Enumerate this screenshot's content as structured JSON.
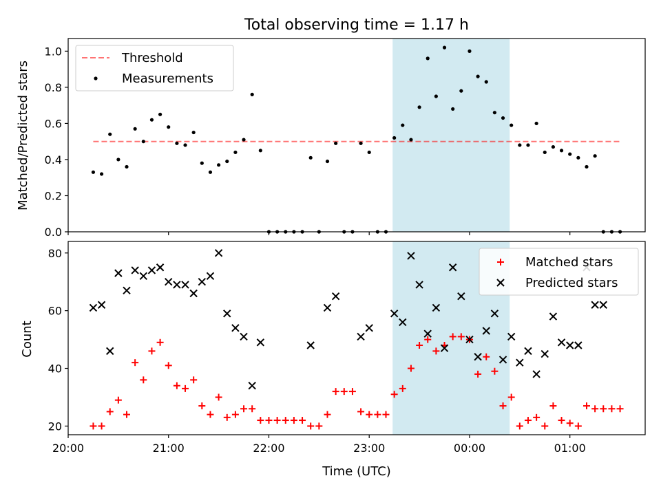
{
  "figure": {
    "title": "Total observing time = 1.17 h",
    "xlabel": "Time (UTC)"
  },
  "colors": {
    "highlight": "#add8e6",
    "threshold": "#ff0000",
    "measurement": "#000000",
    "matched": "#ff0000",
    "predicted": "#000000"
  },
  "chart_data": [
    {
      "type": "scatter",
      "ylabel": "Matched/Predicted stars",
      "xlim": [
        "20:00",
        "01:45"
      ],
      "ylim": [
        0,
        1.07
      ],
      "yticks": [
        "0.0",
        "0.2",
        "0.4",
        "0.6",
        "0.8",
        "1.0"
      ],
      "highlight_span": [
        "23:14",
        "00:24"
      ],
      "legend": {
        "position": "upper-left",
        "entries": [
          "Threshold",
          "Measurements"
        ]
      },
      "threshold": {
        "name": "Threshold",
        "value": 0.5,
        "x_range": [
          "20:15",
          "01:30"
        ],
        "style": "dashed"
      },
      "series": [
        {
          "name": "Measurements",
          "x": [
            "20:15",
            "20:20",
            "20:25",
            "20:30",
            "20:35",
            "20:40",
            "20:45",
            "20:50",
            "20:55",
            "21:00",
            "21:05",
            "21:10",
            "21:15",
            "21:20",
            "21:25",
            "21:30",
            "21:35",
            "21:40",
            "21:45",
            "21:50",
            "21:55",
            "22:00",
            "22:05",
            "22:10",
            "22:15",
            "22:20",
            "22:25",
            "22:30",
            "22:35",
            "22:40",
            "22:45",
            "22:50",
            "22:55",
            "23:00",
            "23:05",
            "23:10",
            "23:15",
            "23:20",
            "23:25",
            "23:30",
            "23:35",
            "23:40",
            "23:45",
            "23:50",
            "23:55",
            "00:00",
            "00:05",
            "00:10",
            "00:15",
            "00:20",
            "00:25",
            "00:30",
            "00:35",
            "00:40",
            "00:45",
            "00:50",
            "00:55",
            "01:00",
            "01:05",
            "01:10",
            "01:15",
            "01:20",
            "01:25",
            "01:30"
          ],
          "y": [
            0.33,
            0.32,
            0.54,
            0.4,
            0.36,
            0.57,
            0.5,
            0.62,
            0.65,
            0.58,
            0.49,
            0.48,
            0.55,
            0.38,
            0.33,
            0.37,
            0.39,
            0.44,
            0.51,
            0.76,
            0.45,
            0.0,
            0.0,
            0.0,
            0.0,
            0.0,
            0.41,
            0.0,
            0.39,
            0.49,
            0.0,
            0.0,
            0.49,
            0.44,
            0.0,
            0.0,
            0.52,
            0.59,
            0.51,
            0.69,
            0.96,
            0.75,
            1.02,
            0.68,
            0.78,
            1.0,
            0.86,
            0.83,
            0.66,
            0.63,
            0.59,
            0.48,
            0.48,
            0.6,
            0.44,
            0.47,
            0.45,
            0.43,
            0.41,
            0.36,
            0.42,
            0.0,
            0.0,
            0.0
          ]
        }
      ]
    },
    {
      "type": "scatter",
      "ylabel": "Count",
      "xlim": [
        "20:00",
        "01:45"
      ],
      "ylim": [
        17,
        84
      ],
      "yticks": [
        "20",
        "40",
        "60",
        "80"
      ],
      "xticks": [
        "20:00",
        "21:00",
        "22:00",
        "23:00",
        "00:00",
        "01:00"
      ],
      "highlight_span": [
        "23:14",
        "00:24"
      ],
      "legend": {
        "position": "upper-right",
        "entries": [
          "Matched stars",
          "Predicted stars"
        ]
      },
      "series": [
        {
          "name": "Matched stars",
          "marker": "+",
          "x": [
            "20:15",
            "20:20",
            "20:25",
            "20:30",
            "20:35",
            "20:40",
            "20:45",
            "20:50",
            "20:55",
            "21:00",
            "21:05",
            "21:10",
            "21:15",
            "21:20",
            "21:25",
            "21:30",
            "21:35",
            "21:40",
            "21:45",
            "21:50",
            "21:55",
            "22:00",
            "22:05",
            "22:10",
            "22:15",
            "22:20",
            "22:25",
            "22:30",
            "22:35",
            "22:40",
            "22:45",
            "22:50",
            "22:55",
            "23:00",
            "23:05",
            "23:10",
            "23:15",
            "23:20",
            "23:25",
            "23:30",
            "23:35",
            "23:40",
            "23:45",
            "23:50",
            "23:55",
            "00:00",
            "00:05",
            "00:10",
            "00:15",
            "00:20",
            "00:25",
            "00:30",
            "00:35",
            "00:40",
            "00:45",
            "00:50",
            "00:55",
            "01:00",
            "01:05",
            "01:10",
            "01:15",
            "01:20",
            "01:25",
            "01:30"
          ],
          "y": [
            20,
            20,
            25,
            29,
            24,
            42,
            36,
            46,
            49,
            41,
            34,
            33,
            36,
            27,
            24,
            30,
            23,
            24,
            26,
            26,
            22,
            22,
            22,
            22,
            22,
            22,
            20,
            20,
            24,
            32,
            32,
            32,
            25,
            24,
            24,
            24,
            31,
            33,
            40,
            48,
            50,
            46,
            48,
            51,
            51,
            50,
            38,
            44,
            39,
            27,
            30,
            20,
            22,
            23,
            20,
            27,
            22,
            21,
            20,
            27,
            26,
            26,
            26,
            26
          ]
        },
        {
          "name": "Predicted stars",
          "marker": "x",
          "x": [
            "20:15",
            "20:20",
            "20:25",
            "20:30",
            "20:35",
            "20:40",
            "20:45",
            "20:50",
            "20:55",
            "21:00",
            "21:05",
            "21:10",
            "21:15",
            "21:20",
            "21:25",
            "21:30",
            "21:35",
            "21:40",
            "21:45",
            "21:50",
            "21:55",
            "22:25",
            "22:35",
            "22:40",
            "22:55",
            "23:00",
            "23:15",
            "23:20",
            "23:25",
            "23:30",
            "23:35",
            "23:40",
            "23:45",
            "23:50",
            "23:55",
            "00:00",
            "00:05",
            "00:10",
            "00:15",
            "00:20",
            "00:25",
            "00:30",
            "00:35",
            "00:40",
            "00:45",
            "00:50",
            "00:55",
            "01:00",
            "01:05",
            "01:10",
            "01:15",
            "01:20"
          ],
          "y": [
            61,
            62,
            46,
            73,
            67,
            74,
            72,
            74,
            75,
            70,
            69,
            69,
            66,
            70,
            72,
            80,
            59,
            54,
            51,
            34,
            49,
            48,
            61,
            65,
            51,
            54,
            59,
            56,
            79,
            69,
            52,
            61,
            47,
            75,
            65,
            50,
            44,
            53,
            59,
            43,
            51,
            42,
            46,
            38,
            45,
            58,
            49,
            48,
            48,
            75,
            62,
            62
          ]
        }
      ]
    }
  ]
}
